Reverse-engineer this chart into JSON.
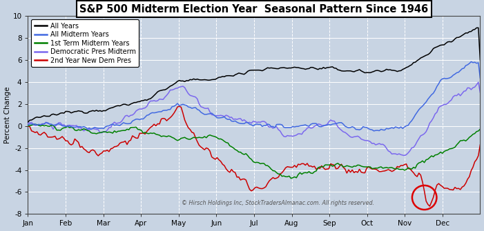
{
  "title": "S&P 500 Midterm Election Year  Seasonal Pattern Since 1946",
  "ylabel": "Percent Change",
  "copyright": "© Hirsch Holdings Inc, StockTradersAlmanac.com. All rights reserved.",
  "ylim": [
    -8,
    10
  ],
  "bg_color": "#c8d4e3",
  "grid_color": "#ffffff",
  "line_colors": {
    "all_years": "#000000",
    "all_midterm": "#4169e1",
    "first_term": "#008000",
    "dem_midterm": "#7B68EE",
    "new_dem_pres": "#cc0000"
  },
  "legend_labels": [
    "All Years",
    "All Midterm Years",
    "1st Term Midterm Years",
    "Democratic Pres Midterm",
    "2nd Year New Dem Pres"
  ],
  "months": [
    "Jan",
    "Feb",
    "Mar",
    "Apr",
    "May",
    "Jun",
    "Jul",
    "Aug",
    "Sep",
    "Oct",
    "Nov",
    "Dec"
  ],
  "n_points": 252,
  "yticks": [
    -8,
    -6,
    -4,
    -2,
    0,
    2,
    4,
    6,
    8,
    10
  ]
}
